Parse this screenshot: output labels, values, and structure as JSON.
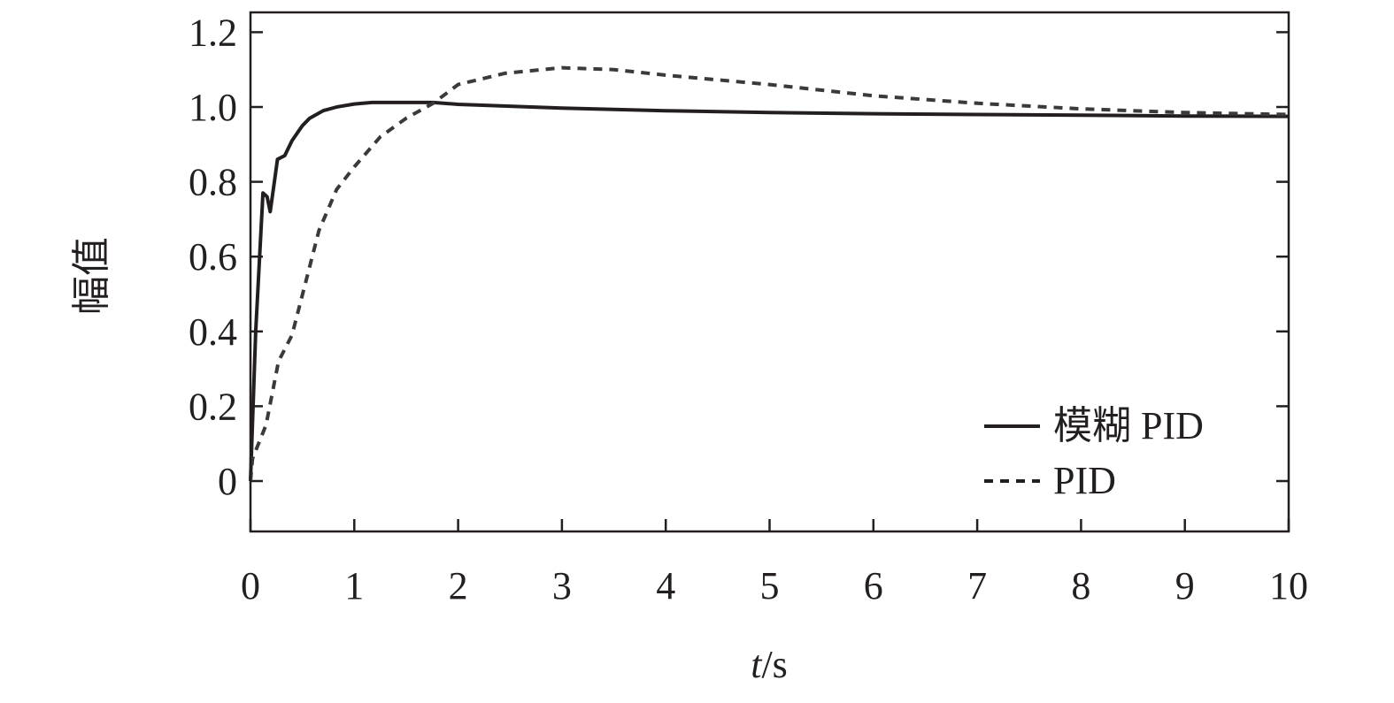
{
  "chart_data": {
    "type": "line",
    "title": "",
    "xlabel_italic": "t",
    "xlabel_unit": "/s",
    "ylabel": "幅值",
    "xlim": [
      0,
      10
    ],
    "ylim": [
      -0.135,
      1.253
    ],
    "xticks": [
      "0",
      "1",
      "2",
      "3",
      "4",
      "5",
      "6",
      "7",
      "8",
      "9",
      "10"
    ],
    "xtick_values": [
      0,
      1,
      2,
      3,
      4,
      5,
      6,
      7,
      8,
      9,
      10
    ],
    "yticks": [
      "0",
      "0.2",
      "0.4",
      "0.6",
      "0.8",
      "1.0",
      "1.2"
    ],
    "ytick_values": [
      0,
      0.2,
      0.4,
      0.6,
      0.8,
      1.0,
      1.2
    ],
    "grid": false,
    "legend_position": "bottom-right",
    "series": [
      {
        "name": "模糊 PID",
        "style": "solid",
        "x": [
          0,
          0.05,
          0.12,
          0.16,
          0.19,
          0.23,
          0.26,
          0.33,
          0.4,
          0.5,
          0.57,
          0.7,
          0.83,
          1.0,
          1.17,
          1.5,
          1.76,
          2.0,
          3.0,
          4.0,
          5.0,
          6.0,
          7.0,
          8.0,
          9.0,
          10.0
        ],
        "y": [
          0,
          0.4,
          0.77,
          0.76,
          0.72,
          0.8,
          0.86,
          0.87,
          0.91,
          0.95,
          0.97,
          0.99,
          1.0,
          1.008,
          1.012,
          1.012,
          1.012,
          1.007,
          0.997,
          0.99,
          0.985,
          0.982,
          0.98,
          0.978,
          0.976,
          0.975
        ]
      },
      {
        "name": "PID",
        "style": "dashed",
        "x": [
          0,
          0.02,
          0.15,
          0.27,
          0.4,
          0.53,
          0.66,
          0.83,
          1.0,
          1.25,
          1.5,
          1.76,
          2.0,
          2.45,
          3.0,
          3.5,
          4.0,
          5.0,
          6.0,
          7.0,
          8.0,
          9.0,
          10.0
        ],
        "y": [
          0,
          0.06,
          0.15,
          0.32,
          0.39,
          0.53,
          0.67,
          0.78,
          0.84,
          0.92,
          0.97,
          1.01,
          1.06,
          1.09,
          1.105,
          1.1,
          1.085,
          1.06,
          1.03,
          1.01,
          0.995,
          0.985,
          0.98
        ]
      }
    ]
  }
}
